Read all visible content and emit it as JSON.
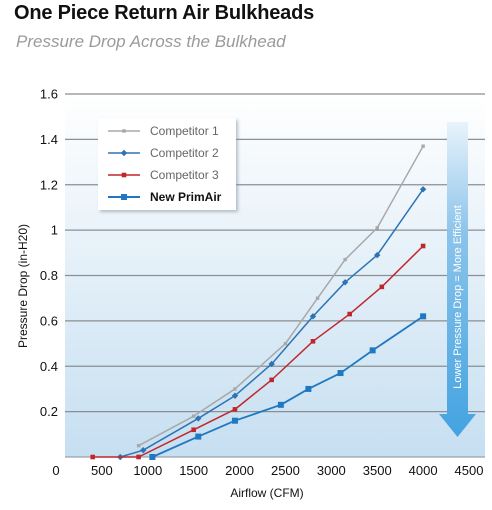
{
  "header": {
    "title": "One Piece Return Air Bulkheads",
    "subtitle": "Pressure Drop Across the Bulkhead"
  },
  "chart_data": {
    "type": "line",
    "xlabel": "Airflow (CFM)",
    "ylabel": "Pressure Drop (in-H20)",
    "xlim": [
      0,
      4500
    ],
    "ylim": [
      0,
      1.6
    ],
    "x_ticks": [
      0,
      500,
      1000,
      1500,
      2000,
      2500,
      3000,
      3500,
      4000,
      4500
    ],
    "x_tick_labels": [
      "0",
      "500",
      "1000",
      "1500",
      "2000",
      "2500",
      "3000",
      "3500",
      "4000",
      "4500"
    ],
    "y_ticks": [
      0.2,
      0.4,
      0.6,
      0.8,
      1,
      1.2,
      1.4,
      1.6
    ],
    "y_tick_labels": [
      "0.2",
      "0.4",
      "0.6",
      "0.8",
      "1",
      "1.2",
      "1.4",
      "1.6"
    ],
    "grid": true,
    "legend_position": "top-left",
    "annotation": "Lower Pressure Drop = More Efficient",
    "series": [
      {
        "name": "Competitor 1",
        "color": "#a8a8a8",
        "marker": "small-square",
        "points": [
          [
            900,
            0.05
          ],
          [
            1500,
            0.18
          ],
          [
            1950,
            0.3
          ],
          [
            2500,
            0.5
          ],
          [
            2850,
            0.7
          ],
          [
            3150,
            0.87
          ],
          [
            3500,
            1.01
          ],
          [
            4000,
            1.37
          ]
        ]
      },
      {
        "name": "Competitor 2",
        "color": "#2e74b5",
        "marker": "diamond",
        "points": [
          [
            700,
            0.0
          ],
          [
            950,
            0.03
          ],
          [
            1550,
            0.17
          ],
          [
            1950,
            0.27
          ],
          [
            2350,
            0.41
          ],
          [
            2800,
            0.62
          ],
          [
            3150,
            0.77
          ],
          [
            3500,
            0.89
          ],
          [
            4000,
            1.18
          ]
        ]
      },
      {
        "name": "Competitor 3",
        "color": "#c0272d",
        "marker": "square",
        "points": [
          [
            400,
            0.0
          ],
          [
            900,
            0.0
          ],
          [
            1500,
            0.12
          ],
          [
            1950,
            0.21
          ],
          [
            2350,
            0.34
          ],
          [
            2800,
            0.51
          ],
          [
            3200,
            0.63
          ],
          [
            3550,
            0.75
          ],
          [
            4000,
            0.93
          ]
        ]
      },
      {
        "name": "New PrimAir",
        "color": "#1f78c1",
        "marker": "big-square",
        "points": [
          [
            1050,
            0.0
          ],
          [
            1550,
            0.09
          ],
          [
            1950,
            0.16
          ],
          [
            2450,
            0.23
          ],
          [
            2750,
            0.3
          ],
          [
            3100,
            0.37
          ],
          [
            3450,
            0.47
          ],
          [
            4000,
            0.62
          ]
        ]
      }
    ]
  }
}
